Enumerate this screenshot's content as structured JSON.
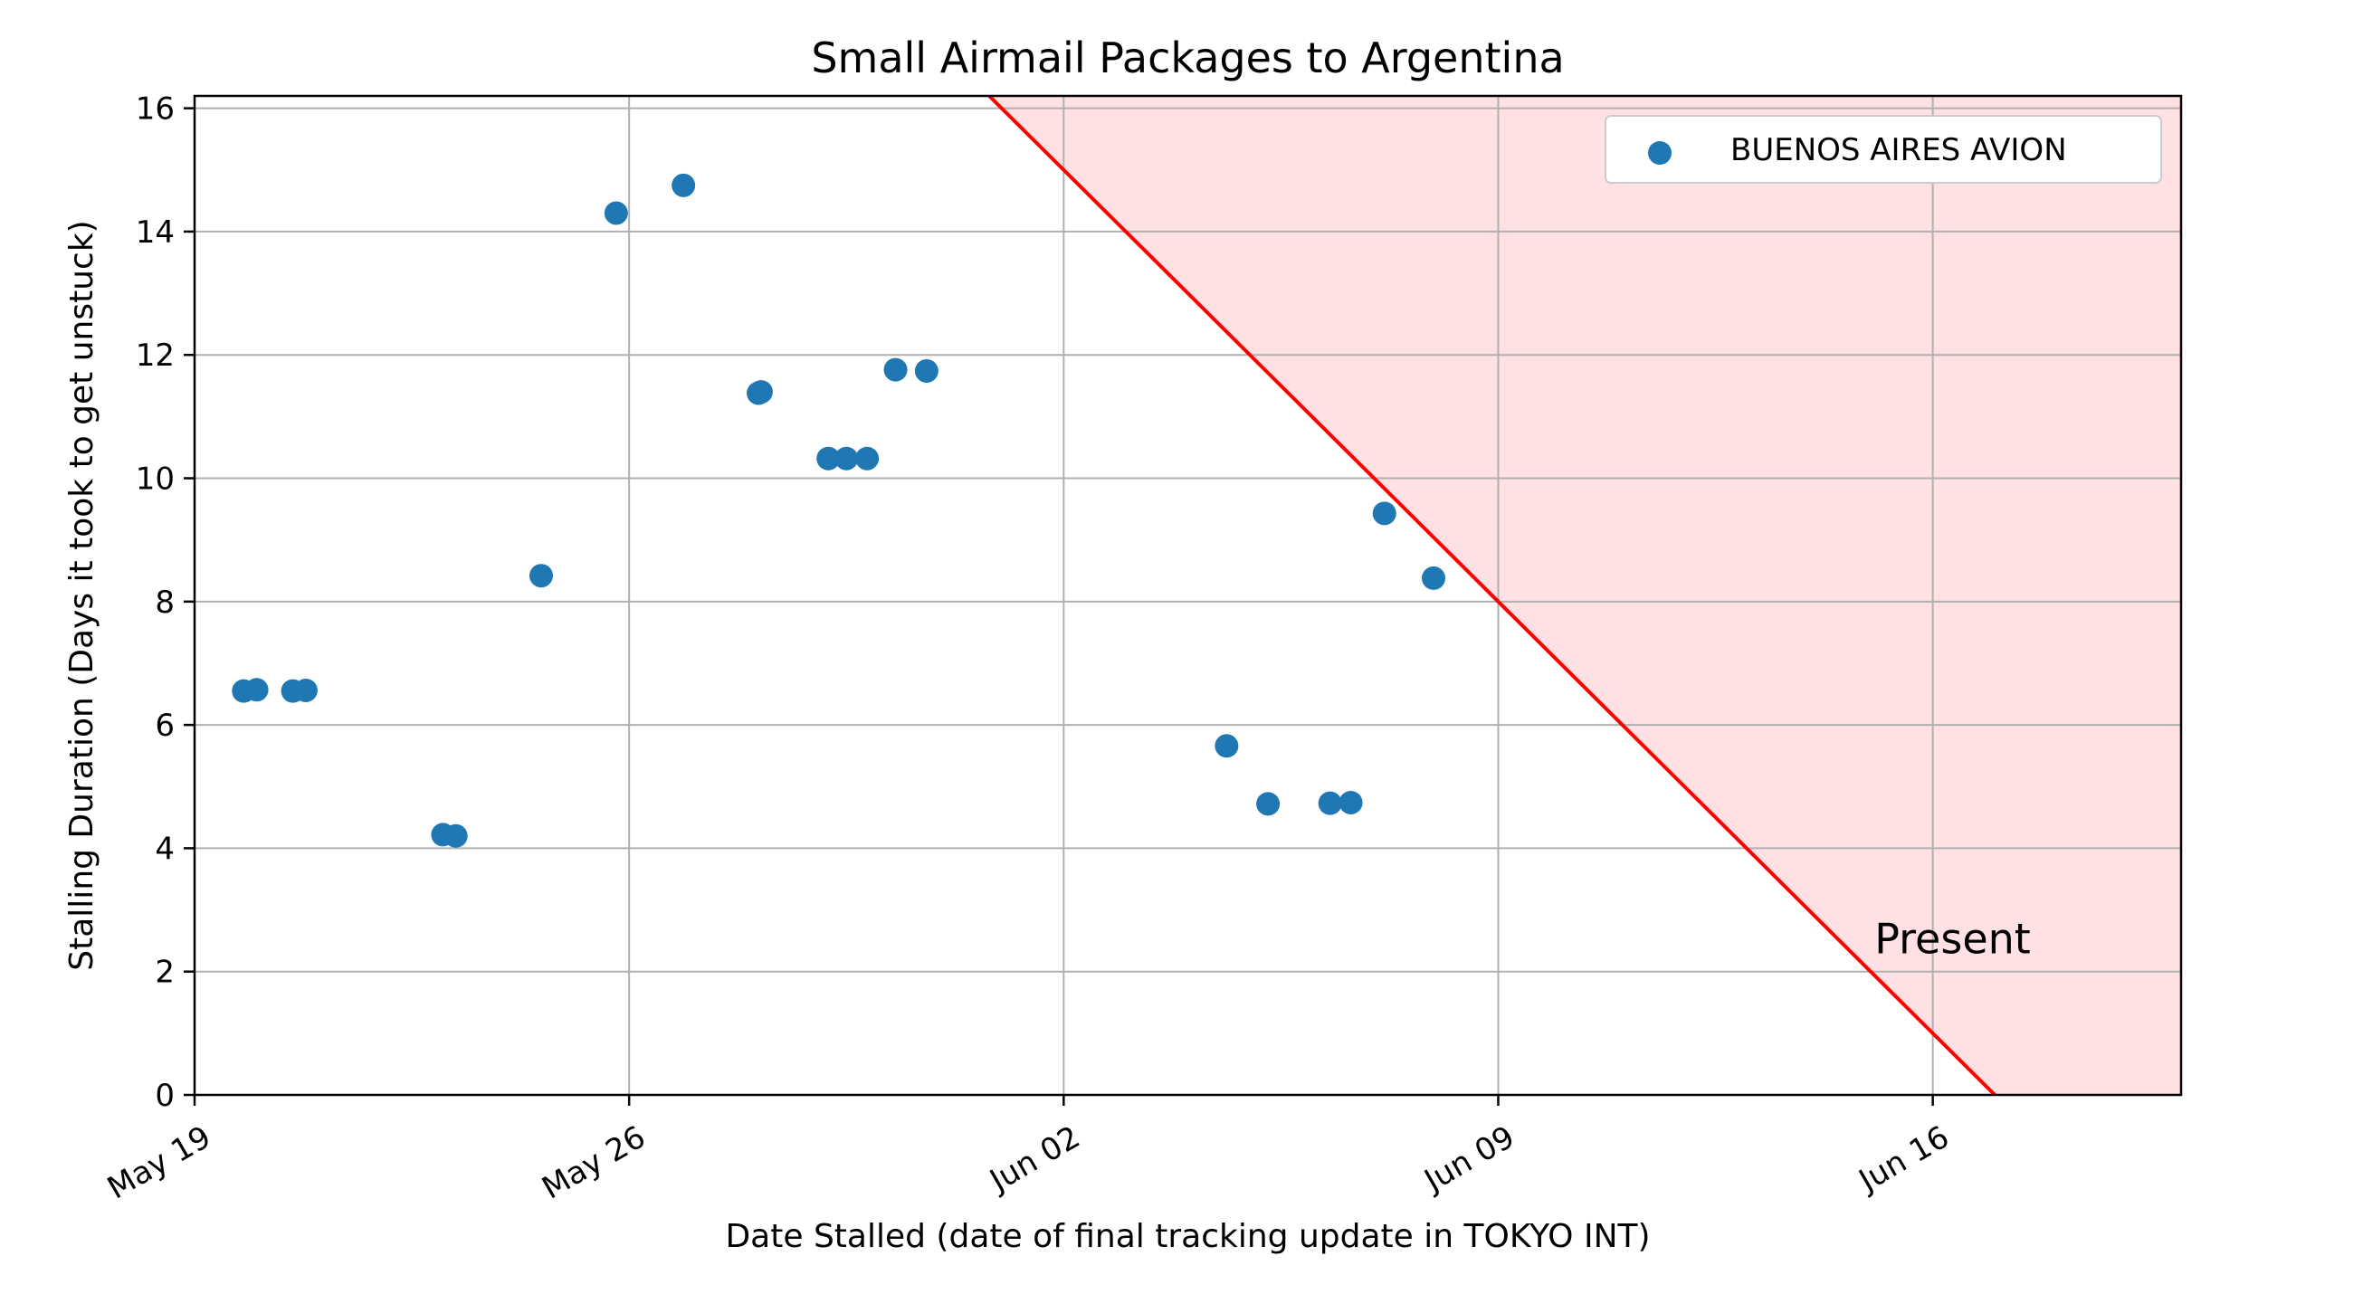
{
  "chart_data": {
    "type": "scatter",
    "title": "Small Airmail Packages to Argentina",
    "xlabel": "Date Stalled (date of final tracking update in TOKYO INT)",
    "ylabel": "Stalling Duration (Days it took to get unstuck)",
    "x_axis_type": "date",
    "xlim": [
      "2024-05-19",
      "2024-06-20"
    ],
    "ylim": [
      0,
      16.2
    ],
    "x_ticks": [
      {
        "date": "2024-05-19",
        "label": "May 19"
      },
      {
        "date": "2024-05-26",
        "label": "May 26"
      },
      {
        "date": "2024-06-02",
        "label": "Jun 02"
      },
      {
        "date": "2024-06-09",
        "label": "Jun 09"
      },
      {
        "date": "2024-06-16",
        "label": "Jun 16"
      }
    ],
    "y_ticks": [
      0,
      2,
      4,
      6,
      8,
      10,
      12,
      14,
      16
    ],
    "grid": true,
    "legend_placement": "top-right",
    "series": [
      {
        "name": "BUENOS AIRES AVION",
        "color": "#1f77b4",
        "points": [
          {
            "x": "2024-05-19T19:00",
            "y": 6.55
          },
          {
            "x": "2024-05-20T00:00",
            "y": 6.57
          },
          {
            "x": "2024-05-20T14:00",
            "y": 6.55
          },
          {
            "x": "2024-05-20T19:00",
            "y": 6.56
          },
          {
            "x": "2024-05-23T00:00",
            "y": 4.22
          },
          {
            "x": "2024-05-23T05:00",
            "y": 4.2
          },
          {
            "x": "2024-05-24T14:00",
            "y": 8.42
          },
          {
            "x": "2024-05-25T19:00",
            "y": 14.3
          },
          {
            "x": "2024-05-26T21:00",
            "y": 14.75
          },
          {
            "x": "2024-05-28T02:00",
            "y": 11.38
          },
          {
            "x": "2024-05-28T03:00",
            "y": 11.4
          },
          {
            "x": "2024-05-29T05:00",
            "y": 10.32
          },
          {
            "x": "2024-05-29T12:00",
            "y": 10.32
          },
          {
            "x": "2024-05-29T20:00",
            "y": 10.32
          },
          {
            "x": "2024-05-30T07:00",
            "y": 11.76
          },
          {
            "x": "2024-05-30T19:00",
            "y": 11.74
          },
          {
            "x": "2024-06-04T15:00",
            "y": 5.66
          },
          {
            "x": "2024-06-05T07:00",
            "y": 4.72
          },
          {
            "x": "2024-06-06T07:00",
            "y": 4.73
          },
          {
            "x": "2024-06-06T15:00",
            "y": 4.74
          },
          {
            "x": "2024-06-07T04:00",
            "y": 9.43
          },
          {
            "x": "2024-06-07T23:00",
            "y": 8.38
          }
        ]
      }
    ],
    "present_line": {
      "color": "#ff0000",
      "fill_color": "#ffe0e3",
      "present_date": "2024-06-17",
      "label": "Present"
    }
  }
}
